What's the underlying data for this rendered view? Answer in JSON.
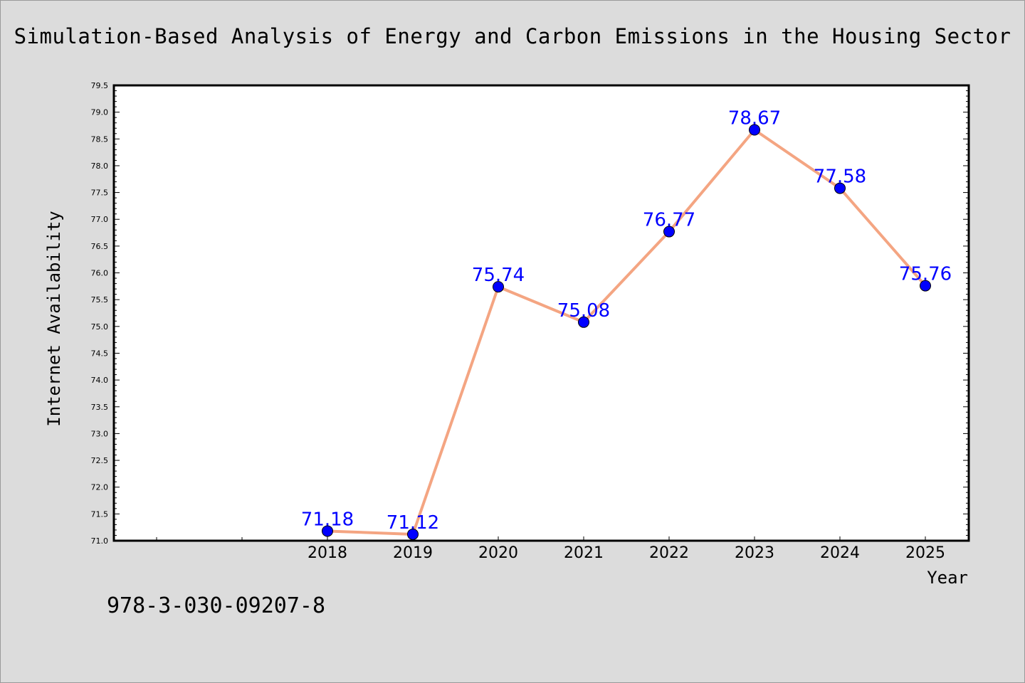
{
  "title": "Simulation-Based Analysis of Energy and Carbon Emissions in the Housing Sector",
  "footer_code": "978-3-030-09207-8",
  "colors": {
    "background": "#dcdcdc",
    "plot_background": "#ffffff",
    "line": "#f4a582",
    "marker": "#0000ff",
    "data_label": "#0000ff"
  },
  "chart_data": {
    "type": "line",
    "xlabel": "Year",
    "ylabel": "Internet Availability",
    "categories": [
      "2018",
      "2019",
      "2020",
      "2021",
      "2022",
      "2023",
      "2024",
      "2025"
    ],
    "values": [
      71.18,
      71.12,
      75.74,
      75.08,
      76.77,
      78.67,
      77.58,
      75.76
    ],
    "data_labels": [
      "71.18",
      "71.12",
      "75.74",
      "75.08",
      "76.77",
      "78.67",
      "77.58",
      "75.76"
    ],
    "ylim": [
      71.0,
      79.5
    ],
    "yticks": [
      "71.0",
      "71.5",
      "72.0",
      "72.5",
      "73.0",
      "73.5",
      "74.0",
      "74.5",
      "75.0",
      "75.5",
      "76.0",
      "76.5",
      "77.0",
      "77.5",
      "78.0",
      "78.5",
      "79.0",
      "79.5"
    ],
    "grid": false,
    "legend": "none"
  }
}
